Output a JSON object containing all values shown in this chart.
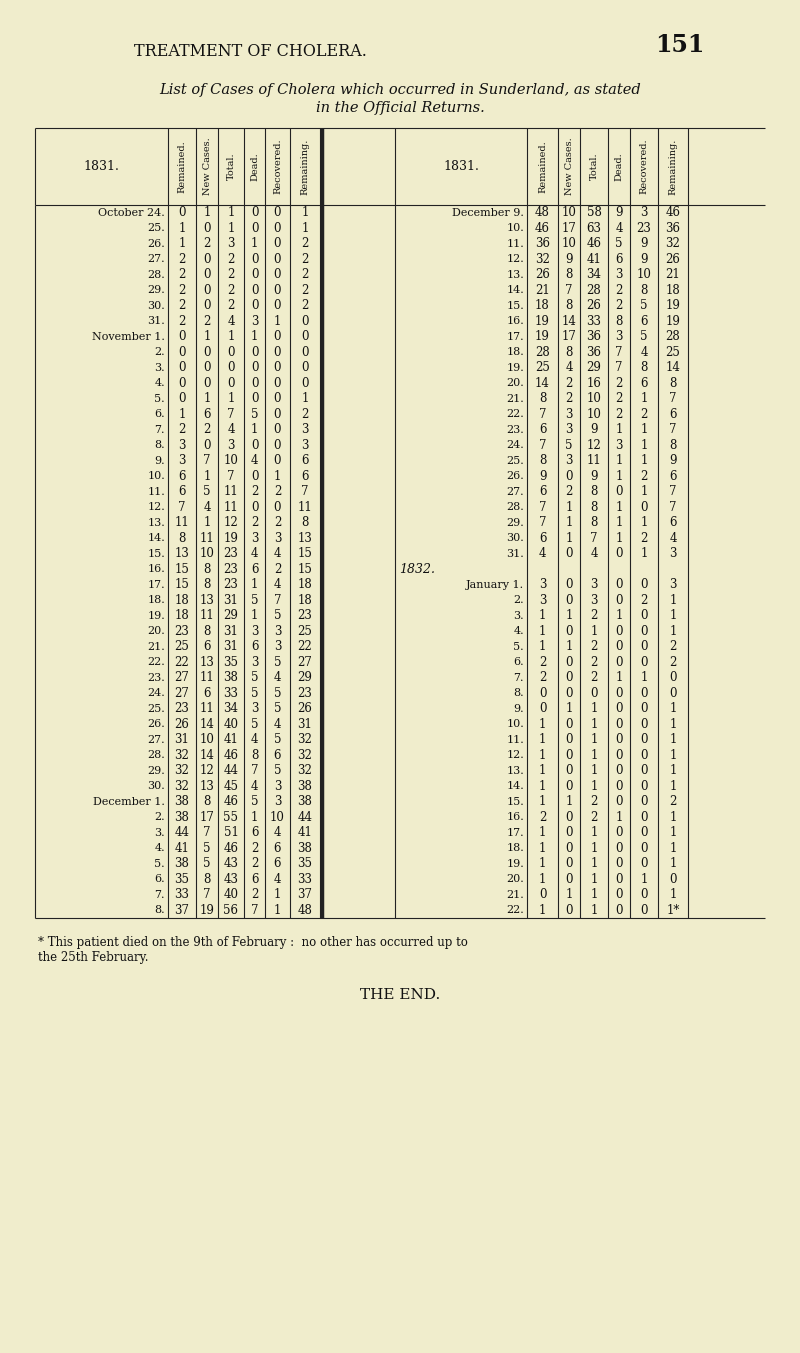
{
  "bg_color": "#f0edcc",
  "page_title": "TREATMENT OF CHOLERA.",
  "page_number": "151",
  "subtitle1": "List of Cases of Cholera which occurred in Sunderland, as stated",
  "subtitle2": "in the Official Returns.",
  "col_headers": [
    "Remained.",
    "New Cases.",
    "Total.",
    "Dead.",
    "Recovered.",
    "Remaining."
  ],
  "footnote1": "* This patient died on the 9th of February :  no other has occurred up to",
  "footnote2": "the 25th February.",
  "end_text": "THE END.",
  "left_data": [
    [
      "October 24.",
      "0",
      "1",
      "1",
      "0",
      "0",
      "1"
    ],
    [
      "25.",
      "1",
      "0",
      "1",
      "0",
      "0",
      "1"
    ],
    [
      "26.",
      "1",
      "2",
      "3",
      "1",
      "0",
      "2"
    ],
    [
      "27.",
      "2",
      "0",
      "2",
      "0",
      "0",
      "2"
    ],
    [
      "28.",
      "2",
      "0",
      "2",
      "0",
      "0",
      "2"
    ],
    [
      "29.",
      "2",
      "0",
      "2",
      "0",
      "0",
      "2"
    ],
    [
      "30.",
      "2",
      "0",
      "2",
      "0",
      "0",
      "2"
    ],
    [
      "31.",
      "2",
      "2",
      "4",
      "3",
      "1",
      "0"
    ],
    [
      "November 1.",
      "0",
      "1",
      "1",
      "1",
      "0",
      "0"
    ],
    [
      "2.",
      "0",
      "0",
      "0",
      "0",
      "0",
      "0"
    ],
    [
      "3.",
      "0",
      "0",
      "0",
      "0",
      "0",
      "0"
    ],
    [
      "4.",
      "0",
      "0",
      "0",
      "0",
      "0",
      "0"
    ],
    [
      "5.",
      "0",
      "1",
      "1",
      "0",
      "0",
      "1"
    ],
    [
      "6.",
      "1",
      "6",
      "7",
      "5",
      "0",
      "2"
    ],
    [
      "7.",
      "2",
      "2",
      "4",
      "1",
      "0",
      "3"
    ],
    [
      "8.",
      "3",
      "0",
      "3",
      "0",
      "0",
      "3"
    ],
    [
      "9.",
      "3",
      "7",
      "10",
      "4",
      "0",
      "6"
    ],
    [
      "10.",
      "6",
      "1",
      "7",
      "0",
      "1",
      "6"
    ],
    [
      "11.",
      "6",
      "5",
      "11",
      "2",
      "2",
      "7"
    ],
    [
      "12.",
      "7",
      "4",
      "11",
      "0",
      "0",
      "11"
    ],
    [
      "13.",
      "11",
      "1",
      "12",
      "2",
      "2",
      "8"
    ],
    [
      "14.",
      "8",
      "11",
      "19",
      "3",
      "3",
      "13"
    ],
    [
      "15.",
      "13",
      "10",
      "23",
      "4",
      "4",
      "15"
    ],
    [
      "16.",
      "15",
      "8",
      "23",
      "6",
      "2",
      "15"
    ],
    [
      "17.",
      "15",
      "8",
      "23",
      "1",
      "4",
      "18"
    ],
    [
      "18.",
      "18",
      "13",
      "31",
      "5",
      "7",
      "18"
    ],
    [
      "19.",
      "18",
      "11",
      "29",
      "1",
      "5",
      "23"
    ],
    [
      "20.",
      "23",
      "8",
      "31",
      "3",
      "3",
      "25"
    ],
    [
      "21.",
      "25",
      "6",
      "31",
      "6",
      "3",
      "22"
    ],
    [
      "22.",
      "22",
      "13",
      "35",
      "3",
      "5",
      "27"
    ],
    [
      "23.",
      "27",
      "11",
      "38",
      "5",
      "4",
      "29"
    ],
    [
      "24.",
      "27",
      "6",
      "33",
      "5",
      "5",
      "23"
    ],
    [
      "25.",
      "23",
      "11",
      "34",
      "3",
      "5",
      "26"
    ],
    [
      "26.",
      "26",
      "14",
      "40",
      "5",
      "4",
      "31"
    ],
    [
      "27.",
      "31",
      "10",
      "41",
      "4",
      "5",
      "32"
    ],
    [
      "28.",
      "32",
      "14",
      "46",
      "8",
      "6",
      "32"
    ],
    [
      "29.",
      "32",
      "12",
      "44",
      "7",
      "5",
      "32"
    ],
    [
      "30.",
      "32",
      "13",
      "45",
      "4",
      "3",
      "38"
    ],
    [
      "December 1.",
      "38",
      "8",
      "46",
      "5",
      "3",
      "38"
    ],
    [
      "2.",
      "38",
      "17",
      "55",
      "1",
      "10",
      "44"
    ],
    [
      "3.",
      "44",
      "7",
      "51",
      "6",
      "4",
      "41"
    ],
    [
      "4.",
      "41",
      "5",
      "46",
      "2",
      "6",
      "38"
    ],
    [
      "5.",
      "38",
      "5",
      "43",
      "2",
      "6",
      "35"
    ],
    [
      "6.",
      "35",
      "8",
      "43",
      "6",
      "4",
      "33"
    ],
    [
      "7.",
      "33",
      "7",
      "40",
      "2",
      "1",
      "37"
    ],
    [
      "8.",
      "37",
      "19",
      "56",
      "7",
      "1",
      "48"
    ]
  ],
  "right_data": [
    [
      "December 9.",
      "48",
      "10",
      "58",
      "9",
      "3",
      "46"
    ],
    [
      "10.",
      "46",
      "17",
      "63",
      "4",
      "23",
      "36"
    ],
    [
      "11.",
      "36",
      "10",
      "46",
      "5",
      "9",
      "32"
    ],
    [
      "12.",
      "32",
      "9",
      "41",
      "6",
      "9",
      "26"
    ],
    [
      "13.",
      "26",
      "8",
      "34",
      "3",
      "10",
      "21"
    ],
    [
      "14.",
      "21",
      "7",
      "28",
      "2",
      "8",
      "18"
    ],
    [
      "15.",
      "18",
      "8",
      "26",
      "2",
      "5",
      "19"
    ],
    [
      "16.",
      "19",
      "14",
      "33",
      "8",
      "6",
      "19"
    ],
    [
      "17.",
      "19",
      "17",
      "36",
      "3",
      "5",
      "28"
    ],
    [
      "18.",
      "28",
      "8",
      "36",
      "7",
      "4",
      "25"
    ],
    [
      "19.",
      "25",
      "4",
      "29",
      "7",
      "8",
      "14"
    ],
    [
      "20.",
      "14",
      "2",
      "16",
      "2",
      "6",
      "8"
    ],
    [
      "21.",
      "8",
      "2",
      "10",
      "2",
      "1",
      "7"
    ],
    [
      "22.",
      "7",
      "3",
      "10",
      "2",
      "2",
      "6"
    ],
    [
      "23.",
      "6",
      "3",
      "9",
      "1",
      "1",
      "7"
    ],
    [
      "24.",
      "7",
      "5",
      "12",
      "3",
      "1",
      "8"
    ],
    [
      "25.",
      "8",
      "3",
      "11",
      "1",
      "1",
      "9"
    ],
    [
      "26.",
      "9",
      "0",
      "9",
      "1",
      "2",
      "6"
    ],
    [
      "27.",
      "6",
      "2",
      "8",
      "0",
      "1",
      "7"
    ],
    [
      "28.",
      "7",
      "1",
      "8",
      "1",
      "0",
      "7"
    ],
    [
      "29.",
      "7",
      "1",
      "8",
      "1",
      "1",
      "6"
    ],
    [
      "30.",
      "6",
      "1",
      "7",
      "1",
      "2",
      "4"
    ],
    [
      "31.",
      "4",
      "0",
      "4",
      "0",
      "1",
      "3"
    ],
    [
      "1832.",
      "",
      "",
      "",
      "",
      "",
      ""
    ],
    [
      "January 1.",
      "3",
      "0",
      "3",
      "0",
      "0",
      "3"
    ],
    [
      "2.",
      "3",
      "0",
      "3",
      "0",
      "2",
      "1"
    ],
    [
      "3.",
      "1",
      "1",
      "2",
      "1",
      "0",
      "1"
    ],
    [
      "4.",
      "1",
      "0",
      "1",
      "0",
      "0",
      "1"
    ],
    [
      "5.",
      "1",
      "1",
      "2",
      "0",
      "0",
      "2"
    ],
    [
      "6.",
      "2",
      "0",
      "2",
      "0",
      "0",
      "2"
    ],
    [
      "7.",
      "2",
      "0",
      "2",
      "1",
      "1",
      "0"
    ],
    [
      "8.",
      "0",
      "0",
      "0",
      "0",
      "0",
      "0"
    ],
    [
      "9.",
      "0",
      "1",
      "1",
      "0",
      "0",
      "1"
    ],
    [
      "10.",
      "1",
      "0",
      "1",
      "0",
      "0",
      "1"
    ],
    [
      "11.",
      "1",
      "0",
      "1",
      "0",
      "0",
      "1"
    ],
    [
      "12.",
      "1",
      "0",
      "1",
      "0",
      "0",
      "1"
    ],
    [
      "13.",
      "1",
      "0",
      "1",
      "0",
      "0",
      "1"
    ],
    [
      "14.",
      "1",
      "0",
      "1",
      "0",
      "0",
      "1"
    ],
    [
      "15.",
      "1",
      "1",
      "2",
      "0",
      "0",
      "2"
    ],
    [
      "16.",
      "2",
      "0",
      "2",
      "1",
      "0",
      "1"
    ],
    [
      "17.",
      "1",
      "0",
      "1",
      "0",
      "0",
      "1"
    ],
    [
      "18.",
      "1",
      "0",
      "1",
      "0",
      "0",
      "1"
    ],
    [
      "19.",
      "1",
      "0",
      "1",
      "0",
      "0",
      "1"
    ],
    [
      "20.",
      "1",
      "0",
      "1",
      "0",
      "1",
      "0"
    ],
    [
      "21.",
      "0",
      "1",
      "1",
      "0",
      "0",
      "1"
    ],
    [
      "22.",
      "1",
      "0",
      "1",
      "0",
      "0",
      "1*"
    ]
  ]
}
